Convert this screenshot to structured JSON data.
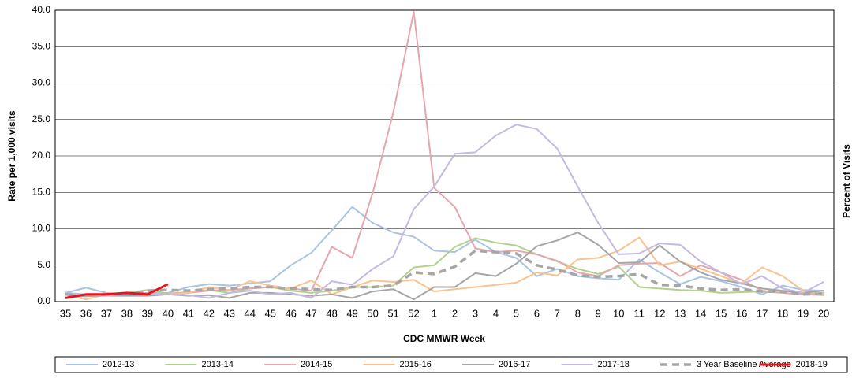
{
  "chart_data": {
    "type": "line",
    "y_label": "Rate per 1,000 visits",
    "y2_label": "Percent of Visits",
    "x_label": "CDC MMWR Week",
    "categories": [
      "35",
      "36",
      "37",
      "38",
      "39",
      "40",
      "41",
      "42",
      "43",
      "44",
      "45",
      "46",
      "47",
      "48",
      "49",
      "50",
      "51",
      "52",
      "1",
      "2",
      "3",
      "4",
      "5",
      "6",
      "7",
      "8",
      "9",
      "10",
      "11",
      "12",
      "13",
      "14",
      "15",
      "16",
      "17",
      "18",
      "19",
      "20"
    ],
    "ylim": [
      0,
      40
    ],
    "yticks": [
      {
        "value": 0,
        "label": "0.0"
      },
      {
        "value": 5,
        "label": "5.0"
      },
      {
        "value": 10,
        "label": "10.0"
      },
      {
        "value": 15,
        "label": "15.0"
      },
      {
        "value": 20,
        "label": "20.0"
      },
      {
        "value": 25,
        "label": "25.0"
      },
      {
        "value": 30,
        "label": "30.0"
      },
      {
        "value": 35,
        "label": "35.0"
      },
      {
        "value": 40,
        "label": "40.0"
      }
    ],
    "grid": true,
    "legend": "bottom",
    "series": [
      {
        "name": "2012-13",
        "color": "#a9c5e3",
        "line_style": "solid",
        "values": [
          1.2,
          1.9,
          1.2,
          1.0,
          1.2,
          1.2,
          2.0,
          2.4,
          2.2,
          2.5,
          2.8,
          5.0,
          6.7,
          9.8,
          13.0,
          10.8,
          9.5,
          8.9,
          7.0,
          6.8,
          8.5,
          6.8,
          6.0,
          3.5,
          4.5,
          3.5,
          3.2,
          3.0,
          5.8,
          4.0,
          2.4,
          3.4,
          2.8,
          2.0,
          1.0,
          2.2,
          1.6,
          1.5
        ]
      },
      {
        "name": "2013-14",
        "color": "#b3d18e",
        "line_style": "solid",
        "values": [
          1.0,
          0.7,
          1.0,
          1.2,
          1.6,
          1.1,
          1.3,
          1.6,
          1.2,
          1.8,
          2.0,
          1.5,
          1.2,
          1.5,
          2.0,
          2.0,
          2.2,
          4.7,
          5.0,
          7.5,
          8.7,
          8.1,
          7.7,
          6.5,
          5.5,
          4.5,
          3.8,
          4.8,
          2.0,
          1.8,
          1.6,
          1.5,
          1.2,
          1.3,
          1.4,
          1.2,
          1.0,
          1.2
        ]
      },
      {
        "name": "2014-15",
        "color": "#e4a7ae",
        "line_style": "solid",
        "values": [
          1.0,
          0.8,
          1.0,
          1.2,
          1.0,
          1.0,
          1.2,
          1.5,
          1.6,
          1.8,
          2.0,
          1.8,
          1.5,
          7.5,
          6.0,
          15.0,
          26.0,
          39.8,
          15.6,
          13.0,
          7.3,
          6.8,
          7.0,
          6.5,
          5.6,
          4.0,
          3.5,
          5.0,
          5.2,
          5.3,
          3.5,
          5.0,
          4.0,
          3.0,
          1.5,
          1.2,
          1.0,
          0.9
        ]
      },
      {
        "name": "2015-16",
        "color": "#f9c28e",
        "line_style": "solid",
        "values": [
          1.0,
          0.3,
          1.0,
          1.0,
          0.8,
          1.0,
          1.2,
          2.0,
          1.6,
          2.8,
          2.2,
          1.8,
          2.9,
          1.0,
          2.0,
          2.9,
          2.7,
          3.0,
          1.4,
          1.7,
          2.0,
          2.3,
          2.6,
          4.0,
          3.6,
          5.8,
          6.0,
          7.0,
          8.8,
          5.0,
          5.5,
          4.5,
          3.5,
          2.5,
          4.7,
          3.5,
          1.5,
          1.0
        ]
      },
      {
        "name": "2016-17",
        "color": "#a6a6a6",
        "line_style": "solid",
        "values": [
          1.0,
          0.8,
          0.8,
          0.8,
          0.8,
          1.0,
          0.8,
          0.9,
          0.5,
          1.2,
          1.2,
          1.0,
          0.8,
          1.0,
          0.5,
          1.4,
          1.7,
          0.3,
          2.0,
          2.0,
          3.9,
          3.5,
          5.2,
          7.6,
          8.4,
          9.5,
          7.8,
          5.3,
          5.4,
          7.7,
          5.5,
          4.0,
          3.0,
          2.5,
          1.8,
          1.5,
          1.2,
          1.5
        ]
      },
      {
        "name": "2017-18",
        "color": "#c5b8e2",
        "line_style": "solid",
        "values": [
          1.2,
          1.0,
          0.8,
          1.0,
          1.0,
          1.0,
          0.9,
          0.5,
          1.2,
          1.5,
          1.0,
          1.2,
          0.5,
          2.8,
          2.3,
          4.5,
          6.2,
          12.7,
          15.8,
          20.3,
          20.5,
          22.8,
          24.3,
          23.7,
          21.0,
          15.8,
          10.8,
          6.5,
          6.6,
          8.0,
          7.8,
          5.5,
          4.0,
          2.4,
          3.5,
          1.8,
          1.2,
          2.7
        ]
      },
      {
        "name": "3 Year Baseline Average",
        "color": "#a6a6a6",
        "line_style": "dashed",
        "values": [
          1.0,
          0.8,
          1.0,
          1.0,
          1.5,
          1.6,
          1.5,
          1.7,
          1.8,
          2.0,
          2.0,
          1.8,
          1.7,
          1.6,
          2.0,
          2.0,
          2.2,
          4.0,
          3.8,
          4.8,
          7.0,
          6.8,
          6.6,
          5.0,
          4.4,
          3.6,
          3.4,
          3.5,
          3.8,
          2.3,
          2.2,
          1.8,
          1.6,
          1.7,
          1.4,
          1.4,
          1.0,
          1.1
        ]
      },
      {
        "name": "2018-19",
        "color": "#e8141c",
        "line_style": "bold",
        "values": [
          0.5,
          1.0,
          1.0,
          1.2,
          1.0,
          2.4,
          null,
          null,
          null,
          null,
          null,
          null,
          null,
          null,
          null,
          null,
          null,
          null,
          null,
          null,
          null,
          null,
          null,
          null,
          null,
          null,
          null,
          null,
          null,
          null,
          null,
          null,
          null,
          null,
          null,
          null,
          null,
          null
        ]
      }
    ]
  }
}
